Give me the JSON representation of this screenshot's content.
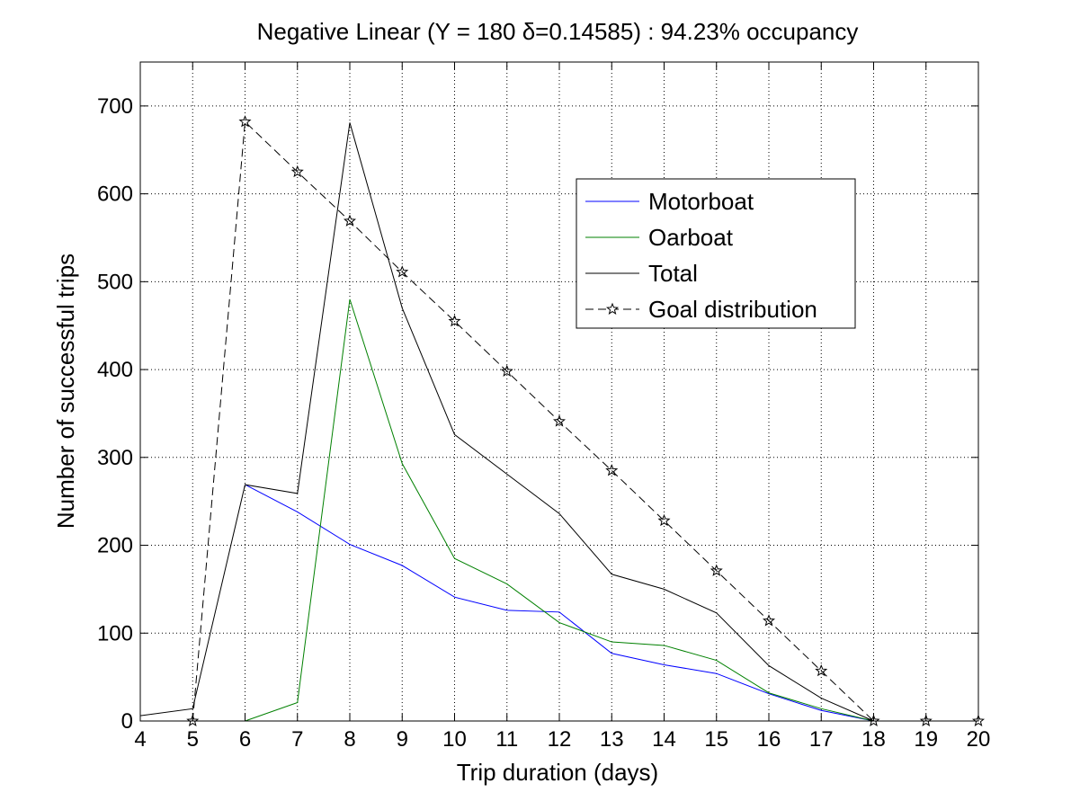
{
  "chart_data": {
    "type": "line",
    "title": "Negative Linear (Y = 180 δ=0.14585) : 94.23% occupancy",
    "xlabel": "Trip duration (days)",
    "ylabel": "Number of successful trips",
    "xlim": [
      4,
      20
    ],
    "ylim": [
      0,
      750
    ],
    "xticks": [
      "4",
      "5",
      "6",
      "7",
      "8",
      "9",
      "10",
      "11",
      "12",
      "13",
      "14",
      "15",
      "16",
      "17",
      "18",
      "19",
      "20"
    ],
    "yticks": [
      "0",
      "100",
      "200",
      "300",
      "400",
      "500",
      "600",
      "700"
    ],
    "grid": true,
    "legend_position": "top-right",
    "series": [
      {
        "name": "Motorboat",
        "color": "#0000ff",
        "style": "solid",
        "marker": "none",
        "x": [
          6,
          7,
          8,
          9,
          10,
          11,
          12,
          13,
          14,
          15,
          16,
          17,
          18
        ],
        "y": [
          269,
          238,
          201,
          177,
          141,
          126,
          124,
          77,
          64,
          54,
          31,
          12,
          0
        ]
      },
      {
        "name": "Oarboat",
        "color": "#008000",
        "style": "solid",
        "marker": "none",
        "x": [
          6,
          7,
          8,
          9,
          10,
          11,
          12,
          13,
          14,
          15,
          16,
          17,
          18
        ],
        "y": [
          0,
          21,
          480,
          293,
          185,
          156,
          112,
          90,
          86,
          69,
          32,
          14,
          0
        ]
      },
      {
        "name": "Total",
        "color": "#000000",
        "style": "solid",
        "marker": "none",
        "x": [
          4,
          5,
          6,
          7,
          8,
          9,
          10,
          11,
          12,
          13,
          14,
          15,
          16,
          17,
          18
        ],
        "y": [
          6,
          14,
          269,
          259,
          681,
          470,
          326,
          281,
          236,
          167,
          150,
          123,
          63,
          26,
          0
        ]
      },
      {
        "name": "Goal distribution",
        "color": "#000000",
        "style": "dashed",
        "marker": "star",
        "x": [
          5,
          6,
          7,
          8,
          9,
          10,
          11,
          12,
          13,
          14,
          15,
          16,
          17,
          18,
          19,
          20
        ],
        "y": [
          0,
          682,
          625,
          569,
          511,
          455,
          398,
          341,
          285,
          228,
          171,
          114,
          57,
          0,
          0,
          0
        ]
      }
    ]
  }
}
